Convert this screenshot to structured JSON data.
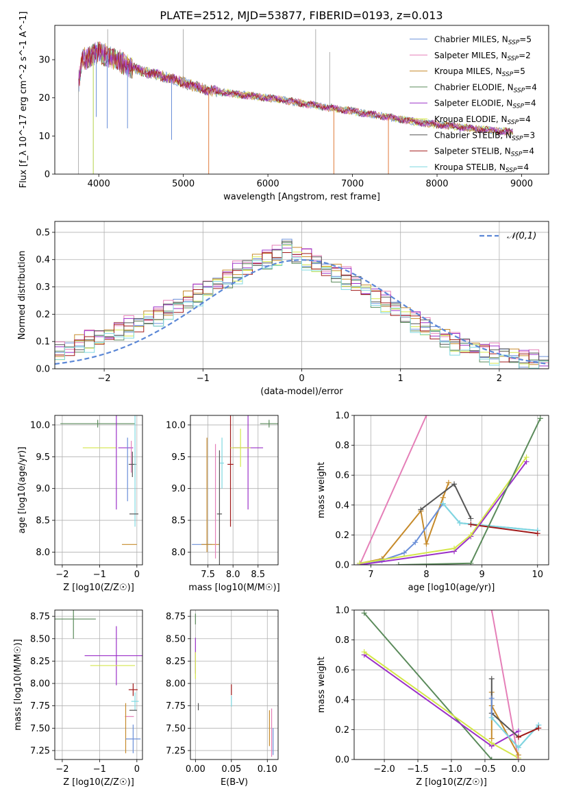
{
  "figure_title": "PLATE=2512, MJD=53877, FIBERID=0193, z=0.013",
  "series_styles": [
    {
      "name": "Chabrier MILES",
      "nssp": "5",
      "color": "#6a8fd8"
    },
    {
      "name": "Salpeter MILES",
      "nssp": "2",
      "color": "#e57fb8"
    },
    {
      "name": "Kroupa MILES",
      "nssp": "5",
      "color": "#c68a2a"
    },
    {
      "name": "Chabrier ELODIE",
      "nssp": "4",
      "color": "#5a8a5a"
    },
    {
      "name": "Salpeter ELODIE",
      "nssp": "4",
      "color": "#9b30c8"
    },
    {
      "name": "Kroupa ELODIE",
      "nssp": "4",
      "color": "#d4e64a"
    },
    {
      "name": "Chabrier STELIB",
      "nssp": "3",
      "color": "#555555"
    },
    {
      "name": "Salpeter STELIB",
      "nssp": "4",
      "color": "#a01818"
    },
    {
      "name": "Kroupa STELIB",
      "nssp": "4",
      "color": "#7fd8e0"
    }
  ],
  "chart_data": [
    {
      "id": "spectrum",
      "type": "line",
      "title": "PLATE=2512, MJD=53877, FIBERID=0193, z=0.013",
      "xlabel": "wavelength [Angstrom, rest frame]",
      "ylabel": "Flux [f_λ 10^-17 erg cm^-2 s^-1 A^-1]",
      "xlim": [
        3480,
        9320
      ],
      "ylim": [
        0,
        39
      ],
      "xticks": [
        4000,
        5000,
        6000,
        7000,
        8000,
        9000
      ],
      "yticks": [
        0,
        10,
        20,
        30
      ],
      "legend": "upper right",
      "data_envelope": {
        "x": [
          3750,
          3800,
          3900,
          4000,
          4100,
          4300,
          4500,
          4700,
          5000,
          5300,
          5600,
          6000,
          6300,
          6700,
          7000,
          7400,
          7800,
          8200,
          8600,
          8900
        ],
        "y": [
          22,
          30,
          31,
          32,
          31,
          29,
          27,
          26,
          24,
          22,
          21,
          20,
          19,
          17.5,
          16.5,
          15,
          13.5,
          12.5,
          11.5,
          11
        ]
      }
    },
    {
      "id": "residuals",
      "type": "histogram",
      "xlabel": "(data-model)/error",
      "ylabel": "Normed distribution",
      "xlim": [
        -2.5,
        2.5
      ],
      "ylim": [
        0,
        0.54
      ],
      "xticks": [
        -2,
        -1,
        0,
        1,
        2
      ],
      "yticks": [
        0.0,
        0.1,
        0.2,
        0.3,
        0.4,
        0.5
      ],
      "reference_curve": "𝒩(0,1)",
      "legend": "upper right",
      "bin_edges": [
        -2.5,
        -2.4,
        -2.3,
        -2.2,
        -2.1,
        -2.0,
        -1.9,
        -1.8,
        -1.7,
        -1.6,
        -1.5,
        -1.4,
        -1.3,
        -1.2,
        -1.1,
        -1.0,
        -0.9,
        -0.8,
        -0.7,
        -0.6,
        -0.5,
        -0.4,
        -0.3,
        -0.2,
        -0.1,
        0.0,
        0.1,
        0.2,
        0.3,
        0.4,
        0.5,
        0.6,
        0.7,
        0.8,
        0.9,
        1.0,
        1.1,
        1.2,
        1.3,
        1.4,
        1.5,
        1.6,
        1.7,
        1.8,
        1.9,
        2.0,
        2.1,
        2.2,
        2.3,
        2.4,
        2.5
      ],
      "base_density": [
        0.06,
        0.07,
        0.09,
        0.1,
        0.11,
        0.12,
        0.14,
        0.15,
        0.16,
        0.18,
        0.19,
        0.21,
        0.23,
        0.25,
        0.27,
        0.29,
        0.31,
        0.33,
        0.35,
        0.37,
        0.39,
        0.4,
        0.41,
        0.45,
        0.41,
        0.4,
        0.38,
        0.36,
        0.35,
        0.33,
        0.31,
        0.28,
        0.26,
        0.24,
        0.22,
        0.19,
        0.17,
        0.15,
        0.13,
        0.11,
        0.09,
        0.08,
        0.07,
        0.06,
        0.05,
        0.05,
        0.04,
        0.03,
        0.03,
        0.02
      ]
    },
    {
      "id": "age-vs-Z",
      "type": "errorbar",
      "xlabel": "Z [log10(Z/Z☉)]",
      "ylabel": "age [log10(age/yr)]",
      "xlim": [
        -2.2,
        0.15
      ],
      "ylim": [
        7.8,
        10.15
      ],
      "xticks": [
        -2,
        -1,
        0
      ],
      "yticks": [
        8.0,
        8.5,
        9.0,
        9.5,
        10.0
      ],
      "points": [
        {
          "series": 3,
          "x": -1.05,
          "y": 10.02,
          "xerr": 1.0,
          "yerr": 0.06
        },
        {
          "series": 5,
          "x": -1.0,
          "y": 9.64,
          "xerr": 0.45,
          "yerr": 0.0
        },
        {
          "series": 4,
          "x": -0.55,
          "y": 9.64,
          "xerr": 0.0,
          "yerr": 0.97
        },
        {
          "series": 4,
          "x": -0.3,
          "y": 9.64,
          "xerr": 0.2,
          "yerr": 0.0
        },
        {
          "series": 1,
          "x": -0.15,
          "y": 9.5,
          "xerr": 0.0,
          "yerr": 0.25
        },
        {
          "series": 6,
          "x": -0.12,
          "y": 9.38,
          "xerr": 0.1,
          "yerr": 0.2
        },
        {
          "series": 8,
          "x": -0.05,
          "y": 9.3,
          "xerr": 0.0,
          "yerr": 0.9
        },
        {
          "series": 6,
          "x": -0.08,
          "y": 8.6,
          "xerr": 0.12,
          "yerr": 0.0
        },
        {
          "series": 2,
          "x": -0.2,
          "y": 8.12,
          "xerr": 0.2,
          "yerr": 0.0
        },
        {
          "series": 0,
          "x": -0.25,
          "y": 9.3,
          "xerr": 0.0,
          "yerr": 0.5
        }
      ]
    },
    {
      "id": "age-vs-mass",
      "type": "errorbar",
      "xlabel": "mass [log10(M/M☉)]",
      "ylabel": "",
      "xlim": [
        7.15,
        8.9
      ],
      "ylim": [
        7.8,
        10.15
      ],
      "xticks": [
        7.5,
        8.0,
        8.5
      ],
      "yticks": [
        8.0,
        8.5,
        9.0,
        9.5,
        10.0
      ],
      "points": [
        {
          "series": 0,
          "x": 7.38,
          "y": 8.12,
          "xerr": 0.2,
          "yerr": 0.0
        },
        {
          "series": 2,
          "x": 7.48,
          "y": 8.9,
          "xerr": 0.0,
          "yerr": 0.9
        },
        {
          "series": 2,
          "x": 7.55,
          "y": 8.12,
          "xerr": 0.18,
          "yerr": 0.0
        },
        {
          "series": 1,
          "x": 7.65,
          "y": 8.8,
          "xerr": 0.0,
          "yerr": 0.9
        },
        {
          "series": 6,
          "x": 7.73,
          "y": 8.6,
          "xerr": 0.05,
          "yerr": 1.0
        },
        {
          "series": 8,
          "x": 7.78,
          "y": 9.4,
          "xerr": 0.04,
          "yerr": 0.4
        },
        {
          "series": 7,
          "x": 7.95,
          "y": 9.38,
          "xerr": 0.06,
          "yerr": 0.98
        },
        {
          "series": 4,
          "x": 8.3,
          "y": 9.64,
          "xerr": 0.3,
          "yerr": 0.97
        },
        {
          "series": 5,
          "x": 8.15,
          "y": 9.64,
          "xerr": 0.2,
          "yerr": 0.3
        },
        {
          "series": 3,
          "x": 8.72,
          "y": 10.02,
          "xerr": 0.18,
          "yerr": 0.06
        }
      ]
    },
    {
      "id": "massweight-vs-age",
      "type": "line",
      "xlabel": "age [log10(age/yr)]",
      "ylabel": "mass weight",
      "xlim": [
        6.7,
        10.2
      ],
      "ylim": [
        0,
        1.0
      ],
      "xticks": [
        7,
        8,
        9,
        10
      ],
      "yticks": [
        0.0,
        0.2,
        0.4,
        0.6,
        0.8,
        1.0
      ],
      "series": [
        {
          "series": 1,
          "x": [
            6.8,
            8.0
          ],
          "y": [
            0.0,
            1.0
          ]
        },
        {
          "series": 2,
          "x": [
            6.8,
            7.2,
            7.9,
            8.0,
            8.3,
            8.4
          ],
          "y": [
            0.01,
            0.04,
            0.36,
            0.14,
            0.45,
            0.55
          ]
        },
        {
          "series": 0,
          "x": [
            6.8,
            7.2,
            7.6,
            7.8,
            8.3,
            8.6,
            10.0
          ],
          "y": [
            0.01,
            0.03,
            0.08,
            0.15,
            0.41,
            0.28,
            0.23
          ]
        },
        {
          "series": 6,
          "x": [
            7.9,
            8.5,
            8.8
          ],
          "y": [
            0.37,
            0.54,
            0.31
          ]
        },
        {
          "series": 8,
          "x": [
            8.3,
            8.6,
            10.0
          ],
          "y": [
            0.41,
            0.28,
            0.23
          ]
        },
        {
          "series": 7,
          "x": [
            8.8,
            10.0
          ],
          "y": [
            0.27,
            0.21
          ]
        },
        {
          "series": 4,
          "x": [
            6.8,
            8.5,
            8.8,
            9.8
          ],
          "y": [
            0.0,
            0.09,
            0.19,
            0.69
          ]
        },
        {
          "series": 5,
          "x": [
            6.8,
            8.5,
            8.8,
            9.8
          ],
          "y": [
            0.01,
            0.11,
            0.2,
            0.72
          ]
        },
        {
          "series": 3,
          "x": [
            7.5,
            8.8,
            10.05
          ],
          "y": [
            0.0,
            0.01,
            0.98
          ]
        }
      ]
    },
    {
      "id": "mass-vs-Z",
      "type": "errorbar",
      "xlabel": "Z [log10(Z/Z☉)]",
      "ylabel": "mass [log10(M/M☉)]",
      "xlim": [
        -2.2,
        0.15
      ],
      "ylim": [
        7.15,
        8.82
      ],
      "xticks": [
        -2,
        -1,
        0
      ],
      "yticks": [
        7.25,
        7.5,
        7.75,
        8.0,
        8.25,
        8.5,
        8.75
      ],
      "points": [
        {
          "series": 3,
          "x": -1.7,
          "y": 8.72,
          "xerr": 0.6,
          "yerr": 0.22
        },
        {
          "series": 4,
          "x": -0.55,
          "y": 8.31,
          "xerr": 0.85,
          "yerr": 0.33
        },
        {
          "series": 5,
          "x": -0.65,
          "y": 8.2,
          "xerr": 0.6,
          "yerr": 0.0
        },
        {
          "series": 7,
          "x": -0.1,
          "y": 7.93,
          "xerr": 0.12,
          "yerr": 0.07
        },
        {
          "series": 8,
          "x": -0.05,
          "y": 7.8,
          "xerr": 0.1,
          "yerr": 0.1
        },
        {
          "series": 6,
          "x": -0.1,
          "y": 7.7,
          "xerr": 0.1,
          "yerr": 0.0
        },
        {
          "series": 1,
          "x": -0.2,
          "y": 7.63,
          "xerr": 0.12,
          "yerr": 0.0
        },
        {
          "series": 2,
          "x": -0.3,
          "y": 7.5,
          "xerr": 0.0,
          "yerr": 0.28
        },
        {
          "series": 0,
          "x": -0.1,
          "y": 7.38,
          "xerr": 0.2,
          "yerr": 0.16
        }
      ]
    },
    {
      "id": "mass-vs-EBV",
      "type": "errorbar",
      "xlabel": "E(B-V)",
      "ylabel": "",
      "xlim": [
        -0.007,
        0.115
      ],
      "ylim": [
        7.15,
        8.82
      ],
      "xticks": [
        0.0,
        0.05,
        0.1
      ],
      "yticks": [
        7.25,
        7.5,
        7.75,
        8.0,
        8.25,
        8.5,
        8.75
      ],
      "points": [
        {
          "series": 3,
          "x": 0.0,
          "y": 8.72,
          "xerr": 0.0,
          "yerr": 0.06
        },
        {
          "series": 4,
          "x": 0.0,
          "y": 8.31,
          "xerr": 0.0,
          "yerr": 0.2
        },
        {
          "series": 5,
          "x": 0.0,
          "y": 8.2,
          "xerr": 0.0,
          "yerr": 0.15
        },
        {
          "series": 6,
          "x": 0.004,
          "y": 7.74,
          "xerr": 0.0,
          "yerr": 0.04
        },
        {
          "series": 7,
          "x": 0.05,
          "y": 7.93,
          "xerr": 0.0,
          "yerr": 0.06
        },
        {
          "series": 8,
          "x": 0.05,
          "y": 7.8,
          "xerr": 0.0,
          "yerr": 0.06
        },
        {
          "series": 2,
          "x": 0.103,
          "y": 7.5,
          "xerr": 0.0,
          "yerr": 0.2
        },
        {
          "series": 1,
          "x": 0.106,
          "y": 7.45,
          "xerr": 0.0,
          "yerr": 0.27
        },
        {
          "series": 0,
          "x": 0.108,
          "y": 7.35,
          "xerr": 0.0,
          "yerr": 0.15
        }
      ]
    },
    {
      "id": "massweight-vs-Z",
      "type": "line",
      "xlabel": "Z [log10(Z/Z☉)]",
      "ylabel": "mass weight",
      "xlim": [
        -2.45,
        0.45
      ],
      "ylim": [
        0,
        1.0
      ],
      "xticks": [
        -2.0,
        -1.5,
        -1.0,
        -0.5,
        0.0
      ],
      "yticks": [
        0.0,
        0.2,
        0.4,
        0.6,
        0.8,
        1.0
      ],
      "series": [
        {
          "series": 3,
          "x": [
            -2.3,
            -0.4,
            0.0
          ],
          "y": [
            0.98,
            0.0,
            0.0
          ]
        },
        {
          "series": 4,
          "x": [
            -2.3,
            -0.4,
            0.0
          ],
          "y": [
            0.7,
            0.09,
            0.19
          ]
        },
        {
          "series": 5,
          "x": [
            -2.3,
            -0.4,
            0.0
          ],
          "y": [
            0.72,
            0.11,
            0.01
          ]
        },
        {
          "series": 1,
          "x": [
            -0.4,
            0.0
          ],
          "y": [
            1.0,
            0.0
          ]
        },
        {
          "series": 2,
          "x": [
            -0.4,
            -0.4,
            -0.4,
            0.0
          ],
          "y": [
            0.45,
            0.14,
            0.36,
            0.03
          ]
        },
        {
          "series": 6,
          "x": [
            -0.4,
            -0.4,
            0.0
          ],
          "y": [
            0.54,
            0.31,
            0.15
          ]
        },
        {
          "series": 0,
          "x": [
            -0.4,
            -0.4,
            0.0,
            0.3
          ],
          "y": [
            0.41,
            0.28,
            0.08,
            0.23
          ]
        },
        {
          "series": 8,
          "x": [
            -0.4,
            0.0,
            0.3
          ],
          "y": [
            0.28,
            0.08,
            0.23
          ]
        },
        {
          "series": 7,
          "x": [
            0.0,
            0.3
          ],
          "y": [
            0.15,
            0.21
          ]
        }
      ]
    }
  ]
}
